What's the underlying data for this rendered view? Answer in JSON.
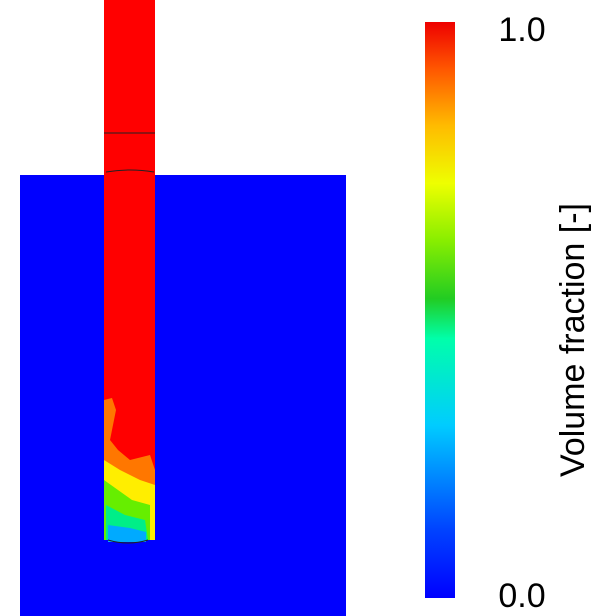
{
  "colorbar": {
    "label": "Volume fraction [-]",
    "ticks": [
      {
        "value": 1,
        "label": "1.0"
      },
      {
        "value": 0,
        "label": "0.0"
      }
    ]
  }
}
